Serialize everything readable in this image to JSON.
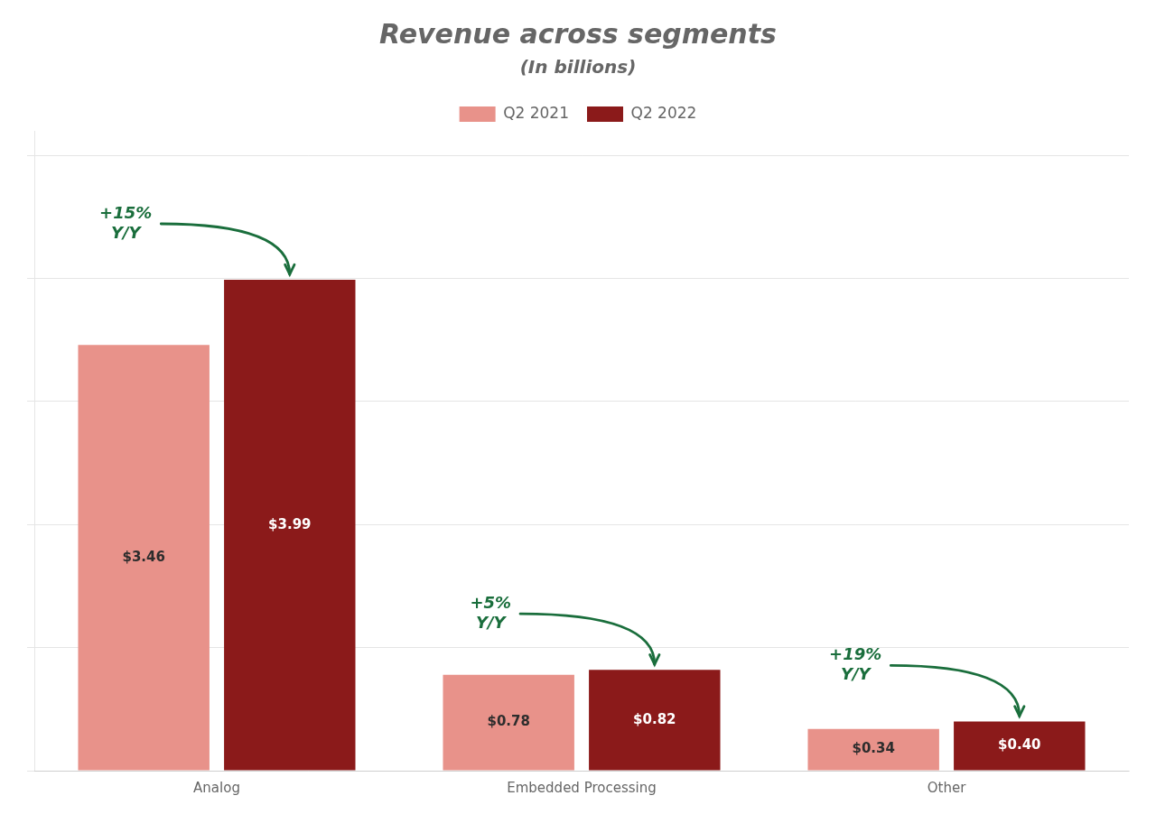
{
  "chart_data": {
    "type": "bar",
    "title": "Revenue across segments",
    "subtitle": "(In billions)",
    "categories": [
      "Analog",
      "Embedded Processing",
      "Other"
    ],
    "series": [
      {
        "name": "Q2 2021",
        "color": "#e8928a",
        "values": [
          3.46,
          0.78,
          0.34
        ],
        "value_labels": [
          "$3.46",
          "$0.78",
          "$0.34"
        ]
      },
      {
        "name": "Q2 2022",
        "color": "#8b1a1a",
        "values": [
          3.99,
          0.82,
          0.4
        ],
        "value_labels": [
          "$3.99",
          "$0.82",
          "$0.40"
        ]
      }
    ],
    "ylim": [
      0,
      5.2
    ],
    "yticks": [
      0,
      1,
      2,
      3,
      4,
      5
    ],
    "grid": true,
    "legend": "top",
    "data_labels": true,
    "tick_labels": "x",
    "annotations": [
      {
        "text": "+15%\nY/Y",
        "color": "#1a6e3c"
      },
      {
        "text": "+5%\nY/Y",
        "color": "#1a6e3c"
      },
      {
        "text": "+19%\nY/Y",
        "color": "#1a6e3c"
      }
    ]
  }
}
